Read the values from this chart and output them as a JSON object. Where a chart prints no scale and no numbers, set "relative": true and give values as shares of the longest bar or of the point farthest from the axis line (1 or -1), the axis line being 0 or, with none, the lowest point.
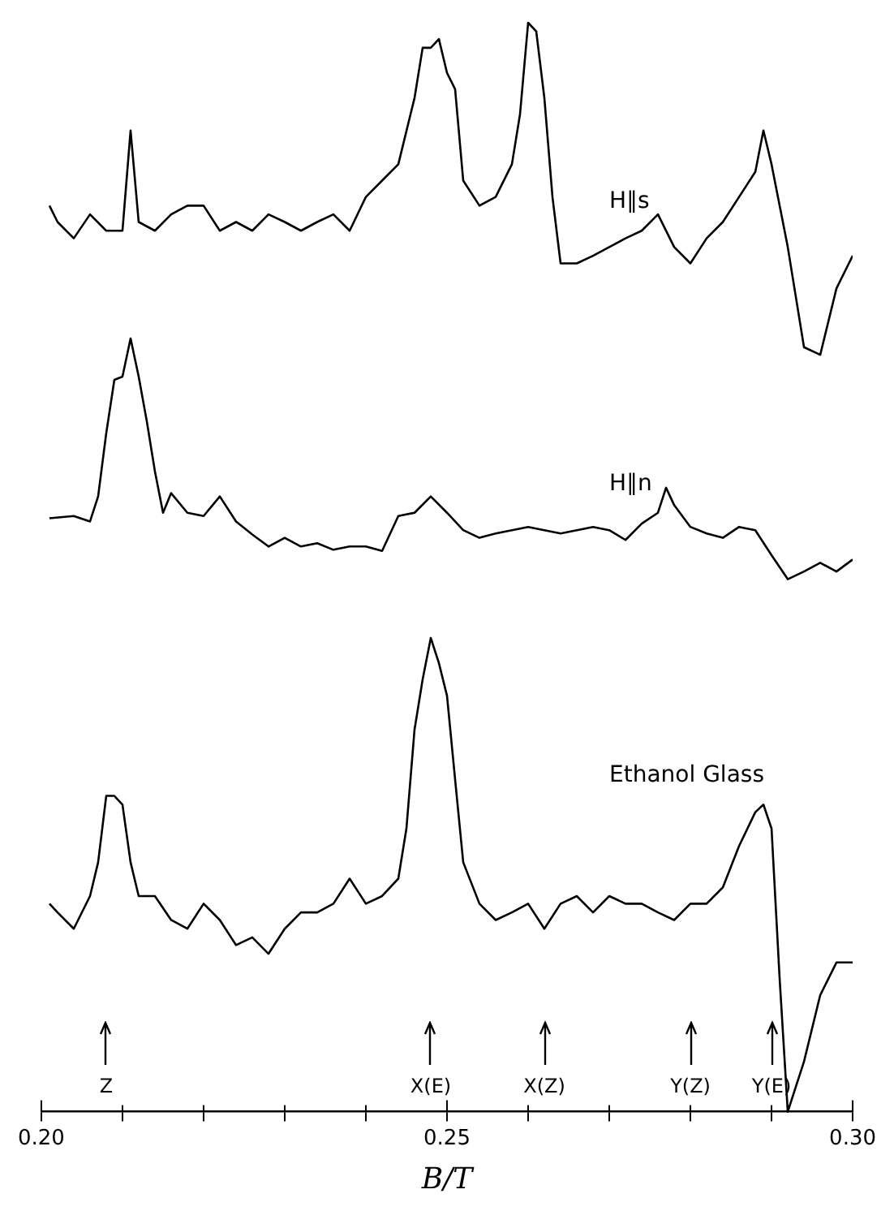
{
  "chart_data": {
    "type": "line",
    "relative": true,
    "xlabel": "B/T",
    "xlim": [
      0.2,
      0.3
    ],
    "xticks": [
      {
        "value": 0.2,
        "label": "0.20"
      },
      {
        "value": 0.21,
        "label": null
      },
      {
        "value": 0.22,
        "label": null
      },
      {
        "value": 0.23,
        "label": null
      },
      {
        "value": 0.24,
        "label": null
      },
      {
        "value": 0.25,
        "label": "0.25"
      },
      {
        "value": 0.26,
        "label": null
      },
      {
        "value": 0.27,
        "label": null
      },
      {
        "value": 0.28,
        "label": null
      },
      {
        "value": 0.29,
        "label": null
      },
      {
        "value": 0.3,
        "label": "0.30"
      }
    ],
    "legend": false,
    "grid": false,
    "marker": "none",
    "line_style": "solid",
    "tick_labels": "x",
    "series": [
      {
        "name": "H∥s",
        "color": "#000000",
        "x": [
          0.201,
          0.202,
          0.204,
          0.206,
          0.208,
          0.21,
          0.211,
          0.212,
          0.214,
          0.216,
          0.218,
          0.22,
          0.222,
          0.224,
          0.226,
          0.228,
          0.23,
          0.232,
          0.234,
          0.236,
          0.238,
          0.24,
          0.242,
          0.244,
          0.246,
          0.247,
          0.248,
          0.249,
          0.25,
          0.251,
          0.252,
          0.254,
          0.256,
          0.258,
          0.259,
          0.26,
          0.261,
          0.262,
          0.263,
          0.264,
          0.266,
          0.268,
          0.27,
          0.272,
          0.274,
          0.276,
          0.278,
          0.28,
          0.282,
          0.284,
          0.286,
          0.288,
          0.289,
          0.29,
          0.292,
          0.294,
          0.296,
          0.298,
          0.3
        ],
        "values": [
          0.832,
          0.817,
          0.802,
          0.824,
          0.809,
          0.809,
          0.901,
          0.817,
          0.809,
          0.824,
          0.832,
          0.832,
          0.809,
          0.817,
          0.809,
          0.824,
          0.817,
          0.809,
          0.817,
          0.824,
          0.809,
          0.84,
          0.855,
          0.87,
          0.931,
          0.977,
          0.977,
          0.985,
          0.954,
          0.939,
          0.855,
          0.832,
          0.84,
          0.87,
          0.916,
          1,
          0.992,
          0.931,
          0.84,
          0.779,
          0.779,
          0.786,
          0.794,
          0.802,
          0.809,
          0.824,
          0.794,
          0.779,
          0.802,
          0.817,
          0.84,
          0.863,
          0.901,
          0.87,
          0.794,
          0.702,
          0.695,
          0.756,
          0.786
        ]
      },
      {
        "name": "H∥n",
        "color": "#000000",
        "x": [
          0.201,
          0.204,
          0.206,
          0.207,
          0.208,
          0.209,
          0.21,
          0.211,
          0.212,
          0.213,
          0.214,
          0.215,
          0.216,
          0.218,
          0.22,
          0.222,
          0.224,
          0.226,
          0.228,
          0.23,
          0.232,
          0.234,
          0.236,
          0.238,
          0.24,
          0.242,
          0.244,
          0.246,
          0.248,
          0.25,
          0.252,
          0.254,
          0.256,
          0.258,
          0.26,
          0.262,
          0.264,
          0.266,
          0.268,
          0.27,
          0.272,
          0.274,
          0.276,
          0.277,
          0.278,
          0.28,
          0.282,
          0.284,
          0.286,
          0.288,
          0.29,
          0.292,
          0.294,
          0.296,
          0.298,
          0.3
        ],
        "values": [
          0.545,
          0.547,
          0.542,
          0.565,
          0.623,
          0.672,
          0.675,
          0.71,
          0.675,
          0.634,
          0.588,
          0.55,
          0.568,
          0.55,
          0.547,
          0.565,
          0.542,
          0.53,
          0.519,
          0.527,
          0.519,
          0.522,
          0.516,
          0.519,
          0.519,
          0.515,
          0.547,
          0.55,
          0.565,
          0.55,
          0.534,
          0.527,
          0.531,
          0.534,
          0.537,
          0.534,
          0.531,
          0.534,
          0.537,
          0.534,
          0.525,
          0.54,
          0.55,
          0.573,
          0.557,
          0.537,
          0.531,
          0.527,
          0.537,
          0.534,
          0.511,
          0.489,
          0.496,
          0.504,
          0.496,
          0.507
        ]
      },
      {
        "name": "Ethanol Glass",
        "color": "#000000",
        "x": [
          0.201,
          0.202,
          0.204,
          0.206,
          0.207,
          0.208,
          0.209,
          0.21,
          0.211,
          0.212,
          0.214,
          0.216,
          0.218,
          0.22,
          0.222,
          0.224,
          0.226,
          0.228,
          0.23,
          0.232,
          0.234,
          0.236,
          0.238,
          0.24,
          0.242,
          0.244,
          0.245,
          0.246,
          0.247,
          0.248,
          0.249,
          0.25,
          0.251,
          0.252,
          0.254,
          0.256,
          0.258,
          0.26,
          0.262,
          0.264,
          0.266,
          0.268,
          0.27,
          0.272,
          0.274,
          0.276,
          0.278,
          0.28,
          0.282,
          0.284,
          0.286,
          0.288,
          0.289,
          0.29,
          0.291,
          0.292,
          0.294,
          0.296,
          0.298,
          0.3
        ],
        "values": [
          0.191,
          0.183,
          0.168,
          0.198,
          0.229,
          0.29,
          0.29,
          0.282,
          0.229,
          0.198,
          0.198,
          0.176,
          0.168,
          0.191,
          0.176,
          0.153,
          0.16,
          0.145,
          0.168,
          0.183,
          0.183,
          0.191,
          0.214,
          0.191,
          0.198,
          0.214,
          0.26,
          0.351,
          0.397,
          0.435,
          0.412,
          0.382,
          0.305,
          0.229,
          0.191,
          0.176,
          0.183,
          0.191,
          0.168,
          0.191,
          0.198,
          0.183,
          0.198,
          0.191,
          0.191,
          0.183,
          0.176,
          0.191,
          0.191,
          0.206,
          0.244,
          0.275,
          0.282,
          0.26,
          0.122,
          0,
          0.046,
          0.107,
          0.137,
          0.137
        ]
      }
    ],
    "annotations": [
      {
        "text": "Z",
        "x": 0.208
      },
      {
        "text": "X(E)",
        "x": 0.248
      },
      {
        "text": "X(Z)",
        "x": 0.262
      },
      {
        "text": "Y(Z)",
        "x": 0.28
      },
      {
        "text": "Y(E)",
        "x": 0.29
      }
    ]
  }
}
